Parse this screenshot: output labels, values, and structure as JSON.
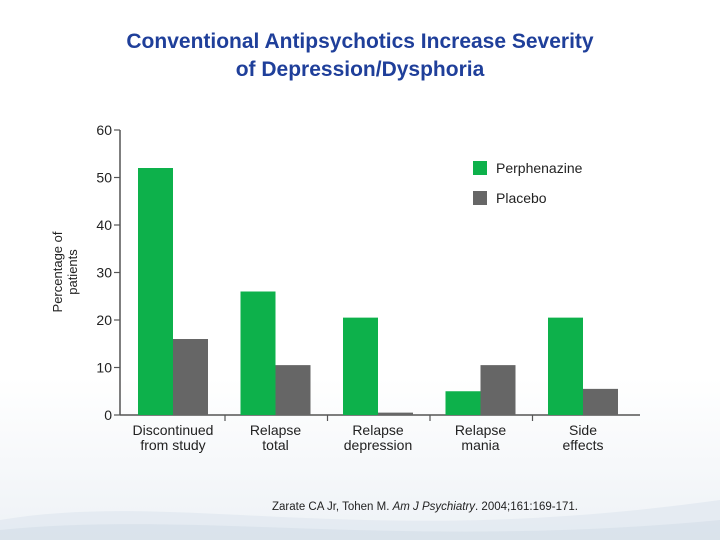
{
  "title": {
    "line1": "Conventional Antipsychotics Increase Severity",
    "line2": "of Depression/Dysphoria"
  },
  "chart_data": {
    "type": "bar",
    "title": "",
    "ylabel": "Percentage of patients",
    "ylabel_lines": [
      "Percentage of",
      "patients"
    ],
    "xlabel": "",
    "ylim": [
      0,
      60
    ],
    "yticks": [
      0,
      10,
      20,
      30,
      40,
      50,
      60
    ],
    "grid": false,
    "legend": "top-right",
    "categories": [
      [
        "Discontinued",
        "from study"
      ],
      [
        "Relapse",
        "total"
      ],
      [
        "Relapse",
        "depression"
      ],
      [
        "Relapse",
        "mania"
      ],
      [
        "Side",
        "effects"
      ]
    ],
    "series": [
      {
        "name": "Perphenazine",
        "color": "#0db14b",
        "values": [
          52,
          26,
          20.5,
          5,
          20.5
        ]
      },
      {
        "name": "Placebo",
        "color": "#666666",
        "values": [
          16,
          10.5,
          0.5,
          10.5,
          5.5
        ]
      }
    ]
  },
  "footer": {
    "authors": "Zarate CA Jr, Tohen M. ",
    "journal": "Am J Psychiatry",
    "details": ". 2004;161:169-171."
  }
}
